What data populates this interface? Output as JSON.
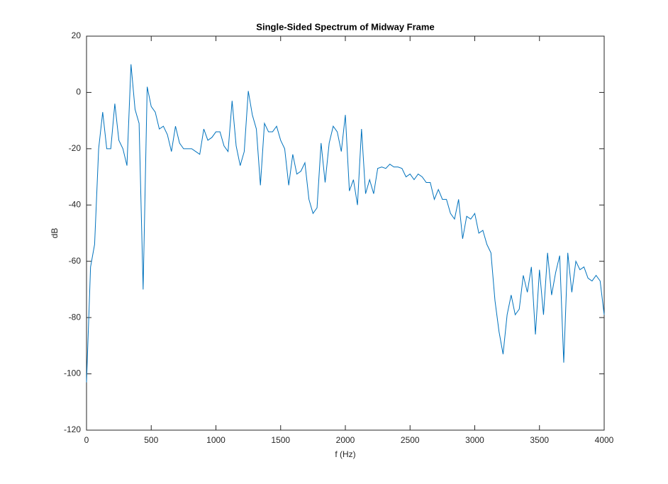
{
  "chart_data": {
    "type": "line",
    "title": "Single-Sided Spectrum of Midway Frame",
    "x_label": "f (Hz)",
    "y_label": "dB",
    "x": [
      0,
      31.25,
      62.5,
      93.75,
      125,
      156.25,
      187.5,
      218.75,
      250,
      281.25,
      312.5,
      343.75,
      375,
      406.25,
      437.5,
      468.75,
      500,
      531.25,
      562.5,
      593.75,
      625,
      656.25,
      687.5,
      718.75,
      750,
      781.25,
      812.5,
      843.75,
      875,
      906.25,
      937.5,
      968.75,
      1000,
      1031.25,
      1062.5,
      1093.75,
      1125,
      1156.25,
      1187.5,
      1218.75,
      1250,
      1281.25,
      1312.5,
      1343.75,
      1375,
      1406.25,
      1437.5,
      1468.75,
      1500,
      1531.25,
      1562.5,
      1593.75,
      1625,
      1656.25,
      1687.5,
      1718.75,
      1750,
      1781.25,
      1812.5,
      1843.75,
      1875,
      1906.25,
      1937.5,
      1968.75,
      2000,
      2031.25,
      2062.5,
      2093.75,
      2125,
      2156.25,
      2187.5,
      2218.75,
      2250,
      2281.25,
      2312.5,
      2343.75,
      2375,
      2406.25,
      2437.5,
      2468.75,
      2500,
      2531.25,
      2562.5,
      2593.75,
      2625,
      2656.25,
      2687.5,
      2718.75,
      2750,
      2781.25,
      2812.5,
      2843.75,
      2875,
      2906.25,
      2937.5,
      2968.75,
      3000,
      3031.25,
      3062.5,
      3093.75,
      3125,
      3156.25,
      3187.5,
      3218.75,
      3250,
      3281.25,
      3312.5,
      3343.75,
      3375,
      3406.25,
      3437.5,
      3468.75,
      3500,
      3531.25,
      3562.5,
      3593.75,
      3625,
      3656.25,
      3687.5,
      3718.75,
      3750,
      3781.25,
      3812.5,
      3843.75,
      3875,
      3906.25,
      3937.5,
      3968.75,
      4000
    ],
    "values": [
      -103,
      -62,
      -54,
      -20,
      -7,
      -20,
      -20,
      -4,
      -17,
      -20,
      -26,
      10,
      -6,
      -11,
      -70,
      2,
      -5,
      -7,
      -13,
      -12,
      -15,
      -21,
      -12,
      -18,
      -20,
      -20,
      -20,
      -21,
      -22,
      -13,
      -17,
      -16,
      -14,
      -14,
      -19,
      -21,
      -3,
      -19,
      -26,
      -21,
      0.5,
      -8,
      -13,
      -33,
      -11,
      -14,
      -14,
      -12,
      -17,
      -20,
      -33,
      -22,
      -29,
      -28,
      -25,
      -38,
      -43,
      -41,
      -18,
      -32,
      -18,
      -12,
      -14,
      -21,
      -8,
      -35,
      -31,
      -40,
      -13,
      -36,
      -31,
      -36,
      -27,
      -26.5,
      -27,
      -25.5,
      -26.5,
      -26.5,
      -27,
      -30,
      -29,
      -31,
      -29,
      -30,
      -32,
      -32,
      -38,
      -34.5,
      -38,
      -38,
      -43,
      -45,
      -38,
      -52,
      -44,
      -45,
      -43,
      -50,
      -49,
      -54,
      -57,
      -74,
      -85,
      -93,
      -79,
      -72,
      -79,
      -77,
      -65,
      -71,
      -62,
      -86,
      -63,
      -79,
      -57,
      -72,
      -64,
      -58,
      -96,
      -57,
      -71,
      -60,
      -63,
      -62,
      -66,
      -67,
      -65,
      -67,
      -79
    ],
    "color": "#0072bd",
    "xlim": [
      0,
      4000
    ],
    "xticks": [
      0,
      500,
      1000,
      1500,
      2000,
      2500,
      3000,
      3500,
      4000
    ],
    "ylim": [
      -120,
      20
    ],
    "yticks": [
      -120,
      -100,
      -80,
      -60,
      -40,
      -20,
      0,
      20
    ]
  }
}
